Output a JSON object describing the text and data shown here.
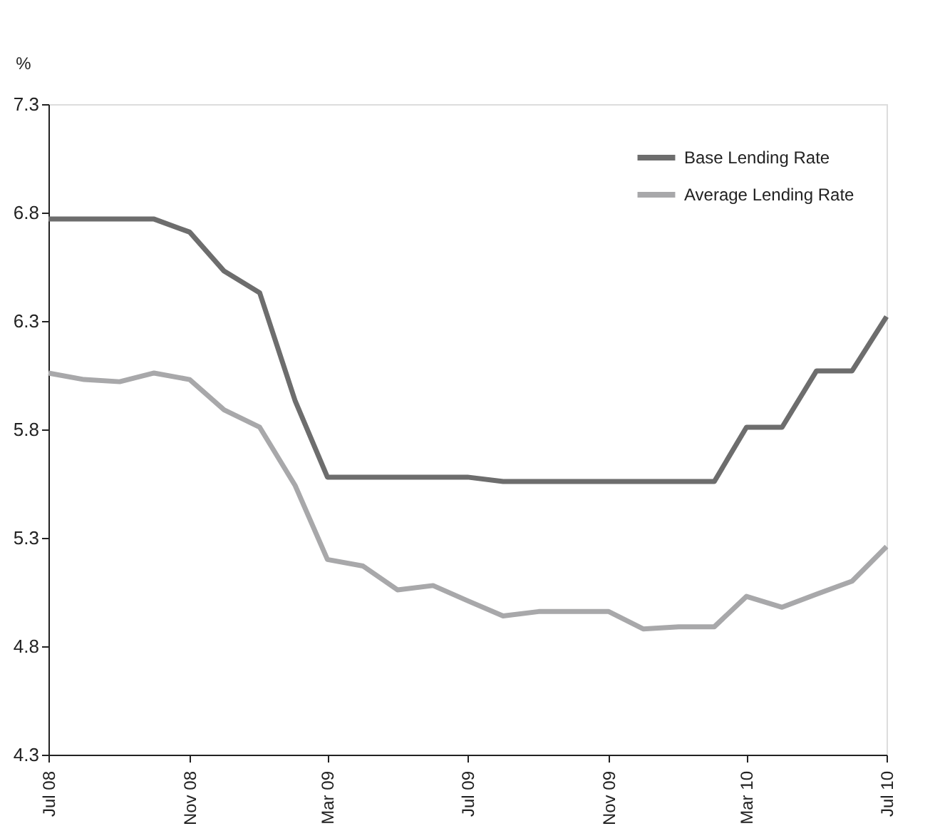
{
  "chart_data": {
    "type": "line",
    "ylabel": "%",
    "x": [
      "2008-07",
      "2008-08",
      "2008-09",
      "2008-10",
      "2008-11",
      "2008-12",
      "2009-01",
      "2009-02",
      "2009-03",
      "2009-04",
      "2009-05",
      "2009-06",
      "2009-07",
      "2009-08",
      "2009-09",
      "2009-10",
      "2009-11",
      "2009-12",
      "2010-01",
      "2010-02",
      "2010-03",
      "2010-04",
      "2010-05",
      "2010-06",
      "2010-07"
    ],
    "series": [
      {
        "name": "Base Lending Rate",
        "color": "#6d6d6d",
        "values": [
          6.77,
          6.77,
          6.77,
          6.77,
          6.71,
          6.53,
          6.43,
          5.93,
          5.58,
          5.58,
          5.58,
          5.58,
          5.58,
          5.56,
          5.56,
          5.56,
          5.56,
          5.56,
          5.56,
          5.56,
          5.81,
          5.81,
          6.07,
          6.07,
          6.32
        ]
      },
      {
        "name": "Average Lending Rate",
        "color": "#a8a8aa",
        "values": [
          6.06,
          6.03,
          6.02,
          6.06,
          6.03,
          5.89,
          5.81,
          5.54,
          5.2,
          5.17,
          5.06,
          5.08,
          5.01,
          4.94,
          4.96,
          4.96,
          4.96,
          4.88,
          4.89,
          4.89,
          5.03,
          4.98,
          5.04,
          5.1,
          5.26
        ]
      }
    ],
    "xlim": [
      "2008-07",
      "2010-07"
    ],
    "xticks": [
      {
        "value": "2008-07",
        "label": "Jul 08"
      },
      {
        "value": "2008-11",
        "label": "Nov 08"
      },
      {
        "value": "2009-03",
        "label": "Mar 09"
      },
      {
        "value": "2009-07",
        "label": "Jul 09"
      },
      {
        "value": "2009-11",
        "label": "Nov 09"
      },
      {
        "value": "2010-03",
        "label": "Mar 10"
      },
      {
        "value": "2010-07",
        "label": "Jul 10"
      }
    ],
    "ylim": [
      4.3,
      7.3
    ],
    "yticks": [
      4.3,
      4.8,
      5.3,
      5.8,
      6.3,
      6.8,
      7.3
    ],
    "grid": false,
    "legend": "top right",
    "marker": "none",
    "line_style": "solid"
  }
}
